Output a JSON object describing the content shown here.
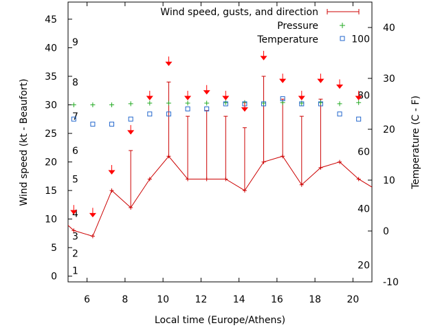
{
  "chart_data": {
    "type": "line",
    "xlabel": "Local time (Europe/Athens)",
    "ylabel": "Wind speed (kt - Beaufort)",
    "y2label": "Temperature (C - F)",
    "xlim": [
      5,
      21
    ],
    "ylim": [
      -1,
      48
    ],
    "y2lim": [
      -10,
      45
    ],
    "x_ticks": [
      6,
      8,
      10,
      12,
      14,
      16,
      18,
      20
    ],
    "y_ticks": [
      0,
      5,
      10,
      15,
      20,
      25,
      30,
      35,
      40,
      45
    ],
    "y2_ticks": [
      -10,
      0,
      10,
      20,
      30,
      40
    ],
    "beaufort_ticks": [
      {
        "label": "1",
        "kt": 1
      },
      {
        "label": "2",
        "kt": 4
      },
      {
        "label": "3",
        "kt": 7
      },
      {
        "label": "4",
        "kt": 11
      },
      {
        "label": "5",
        "kt": 17
      },
      {
        "label": "6",
        "kt": 22
      },
      {
        "label": "7",
        "kt": 28
      },
      {
        "label": "8",
        "kt": 34
      },
      {
        "label": "9",
        "kt": 41
      }
    ],
    "fahrenheit_ticks": [
      {
        "label": "20",
        "c": -6.7
      },
      {
        "label": "40",
        "c": 4.4
      },
      {
        "label": "60",
        "c": 15.6
      },
      {
        "label": "80",
        "c": 26.7
      },
      {
        "label": "100",
        "c": 37.8
      }
    ],
    "legend_position": "top-right",
    "grid": false,
    "colors": {
      "wind": "#cc0000",
      "pressure": "#22aa22",
      "temperature": "#2266cc",
      "arrow": "#ff0000"
    },
    "series": [
      {
        "name": "Wind speed, gusts, and direction",
        "x": [
          4.3,
          5.3,
          6.3,
          7.3,
          8.3,
          9.3,
          10.3,
          11.3,
          12.3,
          13.3,
          14.3,
          15.3,
          16.3,
          17.3,
          18.3,
          19.3,
          20.3,
          21.3
        ],
        "values": [
          11,
          8,
          7,
          15,
          12,
          17,
          21,
          17,
          17,
          17,
          15,
          20,
          21,
          16,
          19,
          20,
          17,
          15
        ],
        "gusts": [
          null,
          null,
          null,
          null,
          22,
          null,
          34,
          28,
          29,
          28,
          26,
          35,
          31,
          28,
          31,
          null,
          null,
          null
        ]
      },
      {
        "name": "Pressure",
        "x": [
          5.3,
          6.3,
          7.3,
          8.3,
          9.3,
          10.3,
          11.3,
          12.3,
          13.3,
          14.3,
          15.3,
          16.3,
          17.3,
          18.3,
          19.3,
          20.3
        ],
        "values": [
          30,
          30,
          30,
          30.2,
          30.3,
          30.3,
          30.3,
          30.3,
          30.4,
          30.4,
          30.3,
          30.4,
          30.3,
          30.4,
          30.2,
          30.4
        ]
      },
      {
        "name": "Temperature",
        "x": [
          5.3,
          6.3,
          7.3,
          8.3,
          9.3,
          10.3,
          11.3,
          12.3,
          13.3,
          14.3,
          15.3,
          16.3,
          17.3,
          18.3,
          19.3,
          20.3
        ],
        "values": [
          22,
          21,
          21,
          22,
          23,
          23,
          24,
          24,
          25,
          25,
          25,
          26,
          25,
          25,
          23,
          22
        ]
      }
    ],
    "wind_direction_arrows": {
      "x": [
        5.3,
        6.3,
        7.3,
        8.3,
        9.3,
        10.3,
        11.3,
        12.3,
        13.3,
        14.3,
        15.3,
        16.3,
        17.3,
        18.3,
        19.3,
        20.3
      ],
      "y": [
        11.5,
        11,
        18.5,
        25.5,
        31.5,
        37.5,
        31.5,
        32.5,
        31.5,
        29.5,
        38.5,
        34.5,
        31.5,
        34.5,
        33.5,
        31.5
      ]
    }
  }
}
